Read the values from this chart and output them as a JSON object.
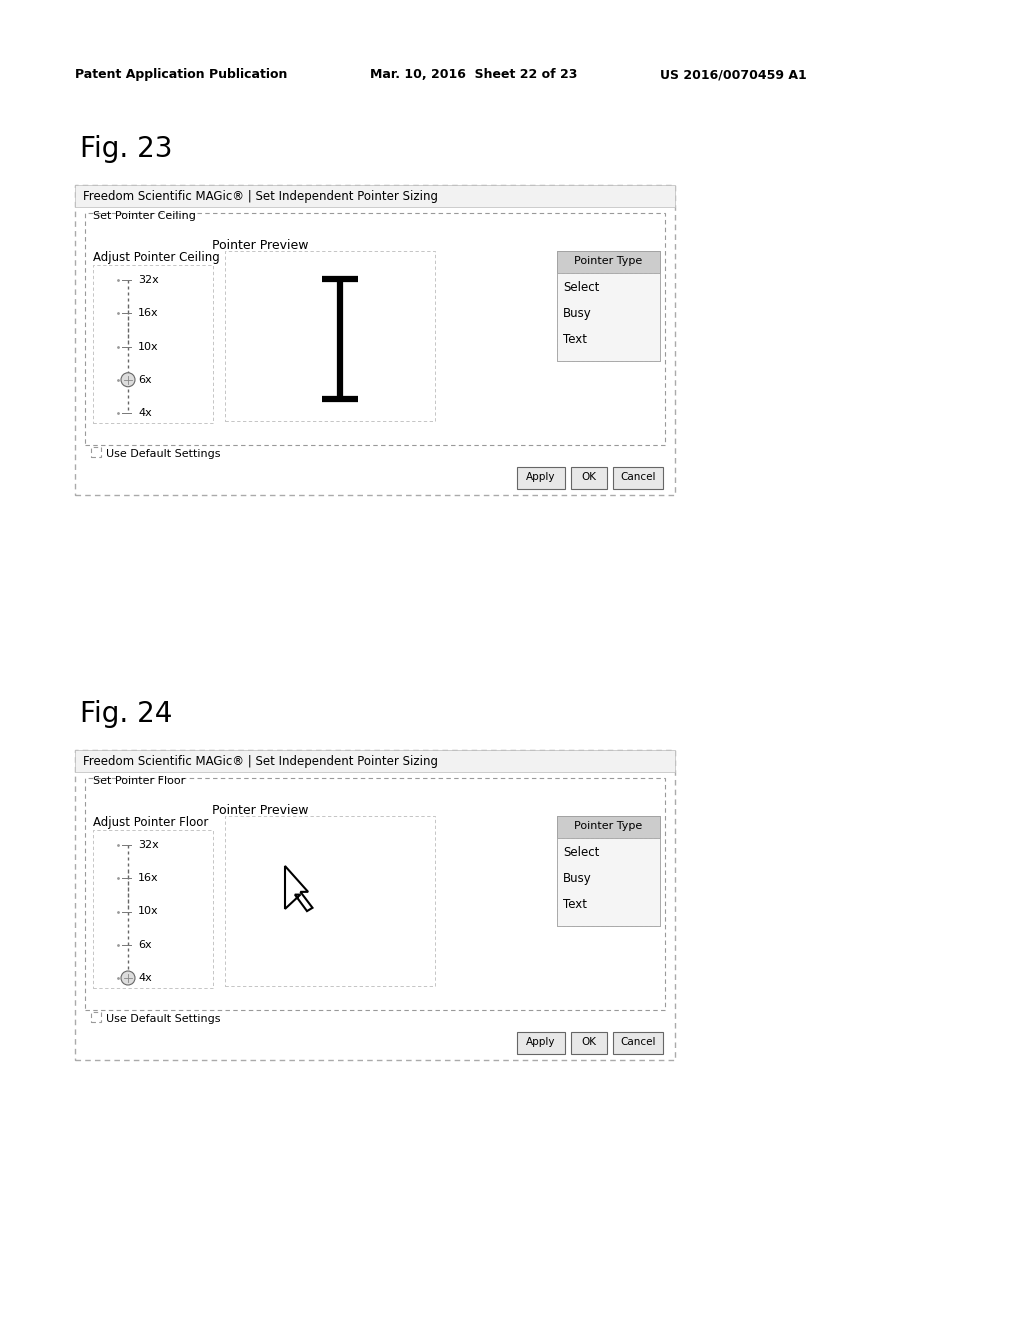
{
  "bg_color": "#ffffff",
  "header_left": "Patent Application Publication",
  "header_mid": "Mar. 10, 2016  Sheet 22 of 23",
  "header_right": "US 2016/0070459 A1",
  "fig23_label": "Fig. 23",
  "fig24_label": "Fig. 24",
  "dialog23_title": "Freedom Scientific MAGic® | Set Independent Pointer Sizing",
  "dialog24_title": "Freedom Scientific MAGic® | Set Independent Pointer Sizing",
  "group23_label": "Set Pointer Ceiling",
  "group24_label": "Set Pointer Floor",
  "adjust23_label": "Adjust Pointer Ceiling",
  "adjust24_label": "Adjust Pointer Floor",
  "preview_label": "Pointer Preview",
  "pointer_type_label": "Pointer Type",
  "slider_values": [
    "32x",
    "16x",
    "10x",
    "6x",
    "4x"
  ],
  "pointer_type_items": [
    "Select",
    "Busy",
    "Text"
  ],
  "checkbox_label": "Use Default Settings",
  "btn_apply": "Apply",
  "btn_ok": "OK",
  "btn_cancel": "Cancel",
  "fig23_handle_idx": 3,
  "fig24_handle_idx": 4
}
